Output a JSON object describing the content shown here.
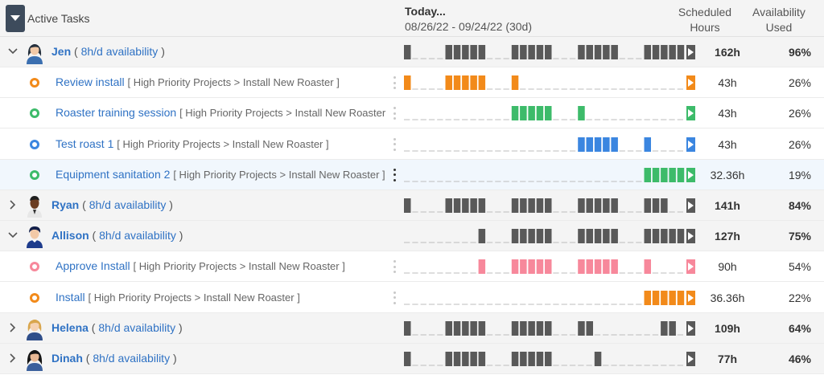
{
  "header": {
    "title": "Active Tasks",
    "today_label": "Today...",
    "date_range": "08/26/22 - 09/24/22 (30d)",
    "scheduled_label_1": "Scheduled",
    "scheduled_label_2": "Hours",
    "availability_label_1": "Availability",
    "availability_label_2": "Used"
  },
  "colors": {
    "person": "#595959",
    "orange": "#f28a1a",
    "green": "#3dbb6a",
    "blue": "#3b86e0",
    "pink": "#f7889b",
    "link": "#2f72c4"
  },
  "rows": [
    {
      "type": "person",
      "expanded": true,
      "avatar": "woman-dark-hair",
      "name": "Jen",
      "availability": "8h/d availability",
      "scheduled": "162h",
      "used": "96%",
      "color": "person",
      "bars": "1000011111000111110001111100011111",
      "arrow": true
    },
    {
      "type": "task",
      "status": "orange",
      "name": "Review install",
      "path": "[ High Priority Projects > Install New Roaster ]",
      "scheduled": "43h",
      "used": "26%",
      "color": "orange",
      "bars": "1000011111000100000000000000000000",
      "arrow": true
    },
    {
      "type": "task",
      "status": "green",
      "name": "Roaster training session",
      "path": "[ High Priority Projects > Install New Roaster ]",
      "scheduled": "43h",
      "used": "26%",
      "color": "green",
      "bars": "0000000000000111110001000000000000",
      "arrow": true
    },
    {
      "type": "task",
      "status": "blue",
      "name": "Test roast 1",
      "path": "[ High Priority Projects > Install New Roaster ]",
      "scheduled": "43h",
      "used": "26%",
      "color": "blue",
      "bars": "0000000000000000000001111100010000",
      "arrow": true
    },
    {
      "type": "task",
      "status": "green",
      "name": "Equipment sanitation 2",
      "path": "[ High Priority Projects > Install New Roaster ]",
      "scheduled": "32.36h",
      "used": "19%",
      "color": "green",
      "selected": true,
      "bars": "0000000000000000000000000000011111",
      "arrow": true
    },
    {
      "type": "person",
      "expanded": false,
      "avatar": "man-dark",
      "name": "Ryan",
      "availability": "8h/d availability",
      "scheduled": "141h",
      "used": "84%",
      "color": "person",
      "bars": "1000011111000111110001111100011100",
      "arrow": true
    },
    {
      "type": "person",
      "expanded": true,
      "avatar": "man-blue",
      "name": "Allison",
      "availability": "8h/d availability",
      "scheduled": "127h",
      "used": "75%",
      "color": "person",
      "bars": "0000000001000111110001111100011111",
      "arrow": true
    },
    {
      "type": "task",
      "status": "pink",
      "name": "Approve Install",
      "path": "[ High Priority Projects > Install New Roaster ]",
      "scheduled": "90h",
      "used": "54%",
      "color": "pink",
      "bars": "0000000001000111110001111100010000",
      "arrow": true
    },
    {
      "type": "task",
      "status": "orange",
      "name": "Install",
      "path": "[ High Priority Projects > Install New Roaster ]",
      "scheduled": "36.36h",
      "used": "22%",
      "color": "orange",
      "bars": "0000000000000000000000000000011111",
      "arrow": true
    },
    {
      "type": "person",
      "expanded": false,
      "avatar": "woman-blonde",
      "name": "Helena",
      "availability": "8h/d availability",
      "scheduled": "109h",
      "used": "64%",
      "color": "person",
      "bars": "1000011111000111110001100000000110",
      "arrow": true
    },
    {
      "type": "person",
      "expanded": false,
      "avatar": "woman-black-hair",
      "name": "Dinah",
      "availability": "8h/d availability",
      "scheduled": "77h",
      "used": "46%",
      "color": "person",
      "bars": "1000011111000111110000010000000000",
      "arrow": true
    }
  ]
}
